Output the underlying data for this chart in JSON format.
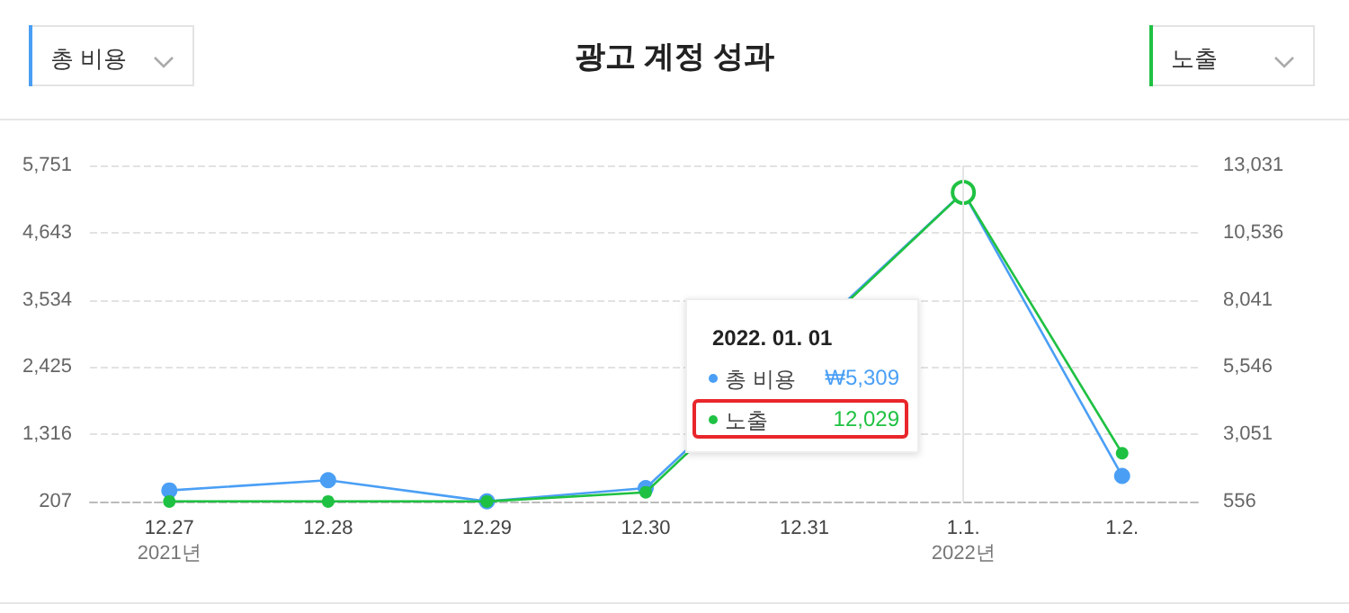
{
  "chart_data": {
    "type": "line",
    "title": "광고 계정 성과",
    "categories": [
      "12.27\n2021년",
      "12.28",
      "12.29",
      "12.30",
      "12.31",
      "1.1.\n2022년",
      "1.2."
    ],
    "series": [
      {
        "name": "총 비용",
        "color": "#4a9ff5",
        "values": [
          390,
          560,
          210,
          430,
          null,
          5309,
          630
        ]
      },
      {
        "name": "노출",
        "color": "#1fc142",
        "axis": "y2",
        "values": [
          560,
          560,
          560,
          900,
          null,
          12029,
          2350
        ]
      }
    ],
    "ylim": [
      207,
      5751
    ],
    "yticks": [
      207,
      {
        "value": 1316,
        "label": "1,316"
      },
      {
        "value": 2425,
        "label": "2,425"
      },
      {
        "value": 3534,
        "label": "3,534"
      },
      {
        "value": 4643,
        "label": "4,643"
      },
      {
        "value": 5751,
        "label": "5,751"
      }
    ],
    "y2lim": [
      556,
      13031
    ],
    "y2ticks": [
      556,
      {
        "value": 3051,
        "label": "3,051"
      },
      {
        "value": 5546,
        "label": "5,546"
      },
      {
        "value": 8041,
        "label": "8,041"
      },
      {
        "value": 10536,
        "label": "10,536"
      },
      {
        "value": 13031,
        "label": "13,031"
      }
    ],
    "grid": "y",
    "legend": "center",
    "marker": "circle",
    "line_style": "solid",
    "ref_lines": [
      {
        "axis": "x",
        "value": "1.1.\n2022년"
      }
    ],
    "annotations": [
      "2022. 01. 01",
      "₩5,309",
      "12,029"
    ]
  }
}
